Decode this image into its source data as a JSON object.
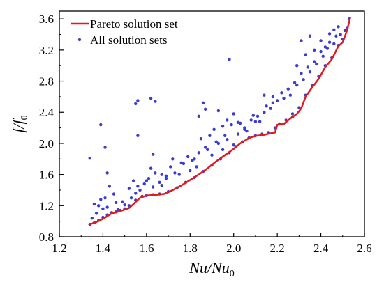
{
  "chart_data": {
    "type": "scatter",
    "xlabel": {
      "main": "Nu/Nu",
      "sub": "0"
    },
    "ylabel": {
      "main": "f/f",
      "sub": "0"
    },
    "xlim": [
      1.2,
      2.6
    ],
    "ylim": [
      0.8,
      3.7
    ],
    "xticks": [
      1.2,
      1.4,
      1.6,
      1.8,
      2.0,
      2.2,
      2.4,
      2.6
    ],
    "yticks": [
      0.8,
      1.2,
      1.6,
      2.0,
      2.4,
      2.8,
      3.2,
      3.6
    ],
    "xtick_labels": [
      "1.2",
      "1.4",
      "1.6",
      "1.8",
      "2.0",
      "2.2",
      "2.4",
      "2.6"
    ],
    "ytick_labels": [
      "0.8",
      "1.2",
      "1.6",
      "2.0",
      "2.4",
      "2.8",
      "3.2",
      "3.6"
    ],
    "grid": false,
    "legend_position": "top-left",
    "colors": {
      "pareto": "#e31a1c",
      "solutions": "#3b3bd6"
    },
    "series": [
      {
        "name": "Pareto solution set",
        "kind": "line",
        "x": [
          1.34,
          1.37,
          1.4,
          1.44,
          1.48,
          1.52,
          1.54,
          1.57,
          1.6,
          1.65,
          1.68,
          1.72,
          1.76,
          1.8,
          1.84,
          1.88,
          1.92,
          1.96,
          2.0,
          2.03,
          2.06,
          2.08,
          2.11,
          2.14,
          2.17,
          2.19,
          2.2,
          2.23,
          2.26,
          2.29,
          2.31,
          2.33,
          2.36,
          2.39,
          2.42,
          2.45,
          2.48,
          2.5,
          2.52,
          2.535
        ],
        "y": [
          0.96,
          0.99,
          1.03,
          1.1,
          1.13,
          1.17,
          1.22,
          1.3,
          1.33,
          1.34,
          1.35,
          1.4,
          1.46,
          1.53,
          1.6,
          1.68,
          1.77,
          1.85,
          1.93,
          2.0,
          2.05,
          2.08,
          2.1,
          2.11,
          2.13,
          2.14,
          2.24,
          2.25,
          2.32,
          2.38,
          2.45,
          2.6,
          2.72,
          2.83,
          2.98,
          3.08,
          3.25,
          3.3,
          3.45,
          3.62
        ]
      },
      {
        "name": "All solution sets",
        "kind": "scatter",
        "x": [
          1.34,
          1.36,
          1.38,
          1.4,
          1.42,
          1.44,
          1.46,
          1.48,
          1.5,
          1.52,
          1.55,
          1.58,
          1.6,
          1.63,
          1.66,
          1.7,
          1.74,
          1.78,
          1.82,
          1.86,
          1.9,
          1.94,
          1.98,
          2.01,
          2.04,
          2.07,
          2.1,
          2.13,
          2.16,
          2.19,
          2.21,
          2.24,
          2.27,
          2.3,
          2.33,
          2.36,
          2.39,
          2.42,
          2.45,
          2.48,
          2.5,
          2.52,
          2.53,
          1.34,
          1.38,
          1.4,
          1.41,
          1.43,
          1.45,
          1.47,
          1.49,
          1.52,
          1.54,
          1.55,
          1.57,
          1.59,
          1.61,
          1.63,
          1.64,
          1.66,
          1.69,
          1.71,
          1.73,
          1.76,
          1.79,
          1.81,
          1.83,
          1.85,
          1.87,
          1.89,
          1.91,
          1.93,
          1.95,
          1.97,
          1.99,
          2.0,
          2.02,
          2.05,
          2.08,
          2.11,
          2.14,
          2.17,
          2.2,
          2.22,
          2.25,
          2.28,
          2.31,
          2.34,
          2.37,
          2.4,
          2.43,
          2.46,
          2.49,
          2.51,
          1.36,
          1.39,
          1.42,
          1.46,
          1.5,
          1.53,
          1.56,
          1.6,
          1.62,
          1.67,
          1.72,
          1.75,
          1.8,
          1.84,
          1.88,
          1.92,
          1.96,
          2.03,
          2.06,
          2.09,
          2.12,
          2.15,
          2.18,
          2.23,
          2.26,
          2.29,
          2.32,
          2.35,
          2.38,
          2.41,
          2.44,
          2.47,
          1.56,
          1.62,
          1.64,
          1.63,
          1.56,
          1.39,
          1.41,
          1.42,
          1.55,
          1.98,
          1.86,
          1.84,
          1.87,
          1.93,
          1.97,
          2.0,
          2.02,
          2.1,
          2.14,
          2.18,
          2.29,
          2.33,
          2.37,
          2.4,
          2.44,
          2.48,
          2.31,
          2.35,
          1.37,
          1.35,
          1.67,
          1.69,
          1.77,
          1.82,
          1.9,
          1.95,
          2.05,
          2.27,
          2.42,
          2.46
        ],
        "y": [
          0.96,
          0.98,
          1.01,
          1.05,
          1.08,
          1.11,
          1.12,
          1.14,
          1.16,
          1.2,
          1.27,
          1.32,
          1.33,
          1.34,
          1.35,
          1.38,
          1.43,
          1.5,
          1.56,
          1.64,
          1.72,
          1.8,
          1.88,
          1.96,
          2.02,
          2.07,
          2.1,
          2.12,
          2.14,
          2.2,
          2.25,
          2.3,
          2.38,
          2.46,
          2.62,
          2.74,
          2.86,
          3.0,
          3.1,
          3.26,
          3.34,
          3.48,
          3.6,
          1.81,
          1.2,
          1.16,
          1.3,
          1.45,
          1.35,
          1.15,
          1.25,
          1.42,
          1.52,
          1.36,
          1.4,
          1.48,
          1.55,
          1.44,
          1.62,
          1.5,
          1.58,
          1.7,
          1.62,
          1.75,
          1.83,
          1.78,
          1.7,
          2.06,
          1.95,
          2.1,
          2.18,
          2.0,
          2.22,
          2.05,
          2.24,
          1.98,
          2.12,
          2.2,
          2.3,
          2.35,
          2.4,
          2.45,
          2.55,
          2.65,
          2.7,
          2.78,
          2.9,
          2.98,
          3.05,
          3.18,
          3.22,
          3.28,
          3.4,
          3.45,
          1.22,
          1.28,
          1.18,
          1.24,
          1.21,
          1.3,
          1.45,
          1.52,
          1.68,
          1.46,
          1.8,
          1.6,
          1.65,
          1.88,
          1.92,
          2.02,
          2.1,
          2.26,
          2.16,
          2.36,
          2.28,
          2.48,
          2.52,
          2.58,
          2.62,
          2.75,
          2.82,
          2.92,
          3.02,
          3.12,
          3.3,
          3.38,
          2.55,
          2.58,
          2.54,
          1.86,
          2.1,
          2.24,
          1.95,
          1.62,
          2.51,
          3.08,
          2.52,
          2.35,
          2.44,
          2.42,
          2.3,
          2.38,
          2.27,
          2.28,
          2.62,
          2.6,
          3.0,
          3.14,
          3.2,
          3.32,
          3.41,
          3.5,
          3.32,
          3.38,
          1.1,
          1.04,
          1.6,
          1.55,
          1.74,
          1.8,
          1.85,
          1.92,
          2.18,
          2.34,
          3.24,
          3.46
        ]
      }
    ]
  }
}
